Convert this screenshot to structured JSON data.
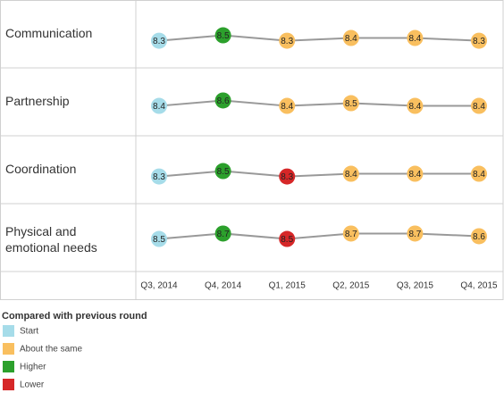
{
  "chart_data": {
    "type": "line",
    "categories": [
      "Q3, 2014",
      "Q4, 2014",
      "Q1, 2015",
      "Q2, 2015",
      "Q3, 2015",
      "Q4, 2015"
    ],
    "ylim": [
      7.3,
      9.8
    ],
    "line_color": "#999999",
    "series": [
      {
        "name": "Communication",
        "values": [
          8.3,
          8.5,
          8.3,
          8.4,
          8.4,
          8.3
        ],
        "colors": [
          "#a6dce9",
          "#2ca02c",
          "#f9bf5f",
          "#f9bf5f",
          "#f9bf5f",
          "#f9bf5f"
        ]
      },
      {
        "name": "Partnership",
        "values": [
          8.4,
          8.6,
          8.4,
          8.5,
          8.4,
          8.4
        ],
        "colors": [
          "#a6dce9",
          "#2ca02c",
          "#f9bf5f",
          "#f9bf5f",
          "#f9bf5f",
          "#f9bf5f"
        ]
      },
      {
        "name": "Coordination",
        "values": [
          8.3,
          8.5,
          8.3,
          8.4,
          8.4,
          8.4
        ],
        "colors": [
          "#a6dce9",
          "#2ca02c",
          "#d62728",
          "#f9bf5f",
          "#f9bf5f",
          "#f9bf5f"
        ]
      },
      {
        "name": "Physical and emotional needs",
        "values": [
          8.5,
          8.7,
          8.5,
          8.7,
          8.7,
          8.6
        ],
        "colors": [
          "#a6dce9",
          "#2ca02c",
          "#d62728",
          "#f9bf5f",
          "#f9bf5f",
          "#f9bf5f"
        ]
      }
    ],
    "legend": {
      "title": "Compared with previous round",
      "items": [
        {
          "name": "Start",
          "color": "#a6dce9"
        },
        {
          "name": "About the same",
          "color": "#f9bf5f"
        },
        {
          "name": "Higher",
          "color": "#2ca02c"
        },
        {
          "name": "Lower",
          "color": "#d62728"
        }
      ]
    }
  }
}
